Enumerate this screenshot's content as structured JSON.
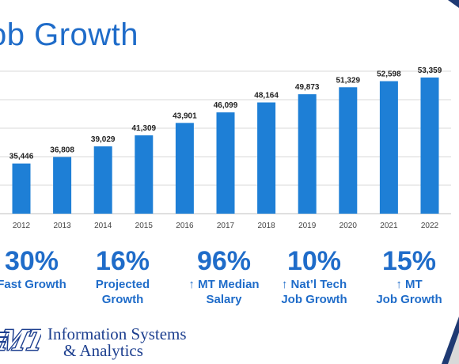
{
  "title": "ob Growth",
  "chart_data": {
    "type": "bar",
    "categories": [
      "2012",
      "2013",
      "2014",
      "2015",
      "2016",
      "2017",
      "2018",
      "2019",
      "2020",
      "2021",
      "2022"
    ],
    "values": [
      35446,
      36808,
      39029,
      41309,
      43901,
      46099,
      48164,
      49873,
      51329,
      52598,
      53359
    ],
    "value_labels": [
      "35,446",
      "36,808",
      "39,029",
      "41,309",
      "43,901",
      "46,099",
      "48,164",
      "49,873",
      "51,329",
      "52,598",
      "53,359"
    ],
    "ylim": [
      25000,
      55000
    ],
    "grid": true,
    "bar_color": "#1e7fd6"
  },
  "stats": [
    {
      "value": "30%",
      "desc_lines": [
        "Fast Growth"
      ]
    },
    {
      "value": "16%",
      "desc_lines": [
        "Projected",
        "Growth"
      ]
    },
    {
      "value": "96%",
      "desc_lines": [
        "↑ MT Median",
        "Salary"
      ]
    },
    {
      "value": "10%",
      "desc_lines": [
        "↑ Nat’l Tech",
        "Job Growth"
      ]
    },
    {
      "value": "15%",
      "desc_lines": [
        "↑ MT",
        "Job Growth"
      ]
    }
  ],
  "logo": {
    "mark_text": "MT",
    "line1": "Information Systems",
    "line2": "& Analytics"
  },
  "colors": {
    "accent": "#1f6cc9",
    "logo": "#1d3f8f",
    "deco": "#1f3a73"
  }
}
